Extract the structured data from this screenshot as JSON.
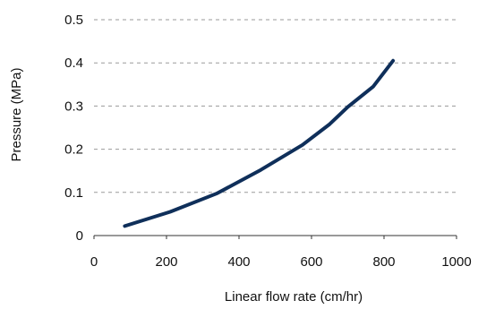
{
  "chart_data": {
    "type": "line",
    "title": "",
    "xlabel": "Linear flow rate (cm/hr)",
    "ylabel": "Pressure (MPa)",
    "xlim": [
      0,
      1000
    ],
    "ylim": [
      0,
      0.5
    ],
    "xticks": [
      "0",
      "200",
      "400",
      "600",
      "800",
      "1000"
    ],
    "yticks": [
      "0",
      "0.1",
      "0.2",
      "0.3",
      "0.4",
      "0.5"
    ],
    "grid": "horizontal dashed",
    "legend": "none",
    "series": [
      {
        "color": "#0f2f5a",
        "x": [
          85,
          210,
          340,
          460,
          575,
          650,
          700,
          770,
          825
        ],
        "y": [
          0.022,
          0.055,
          0.098,
          0.152,
          0.21,
          0.258,
          0.298,
          0.345,
          0.405
        ]
      }
    ]
  }
}
